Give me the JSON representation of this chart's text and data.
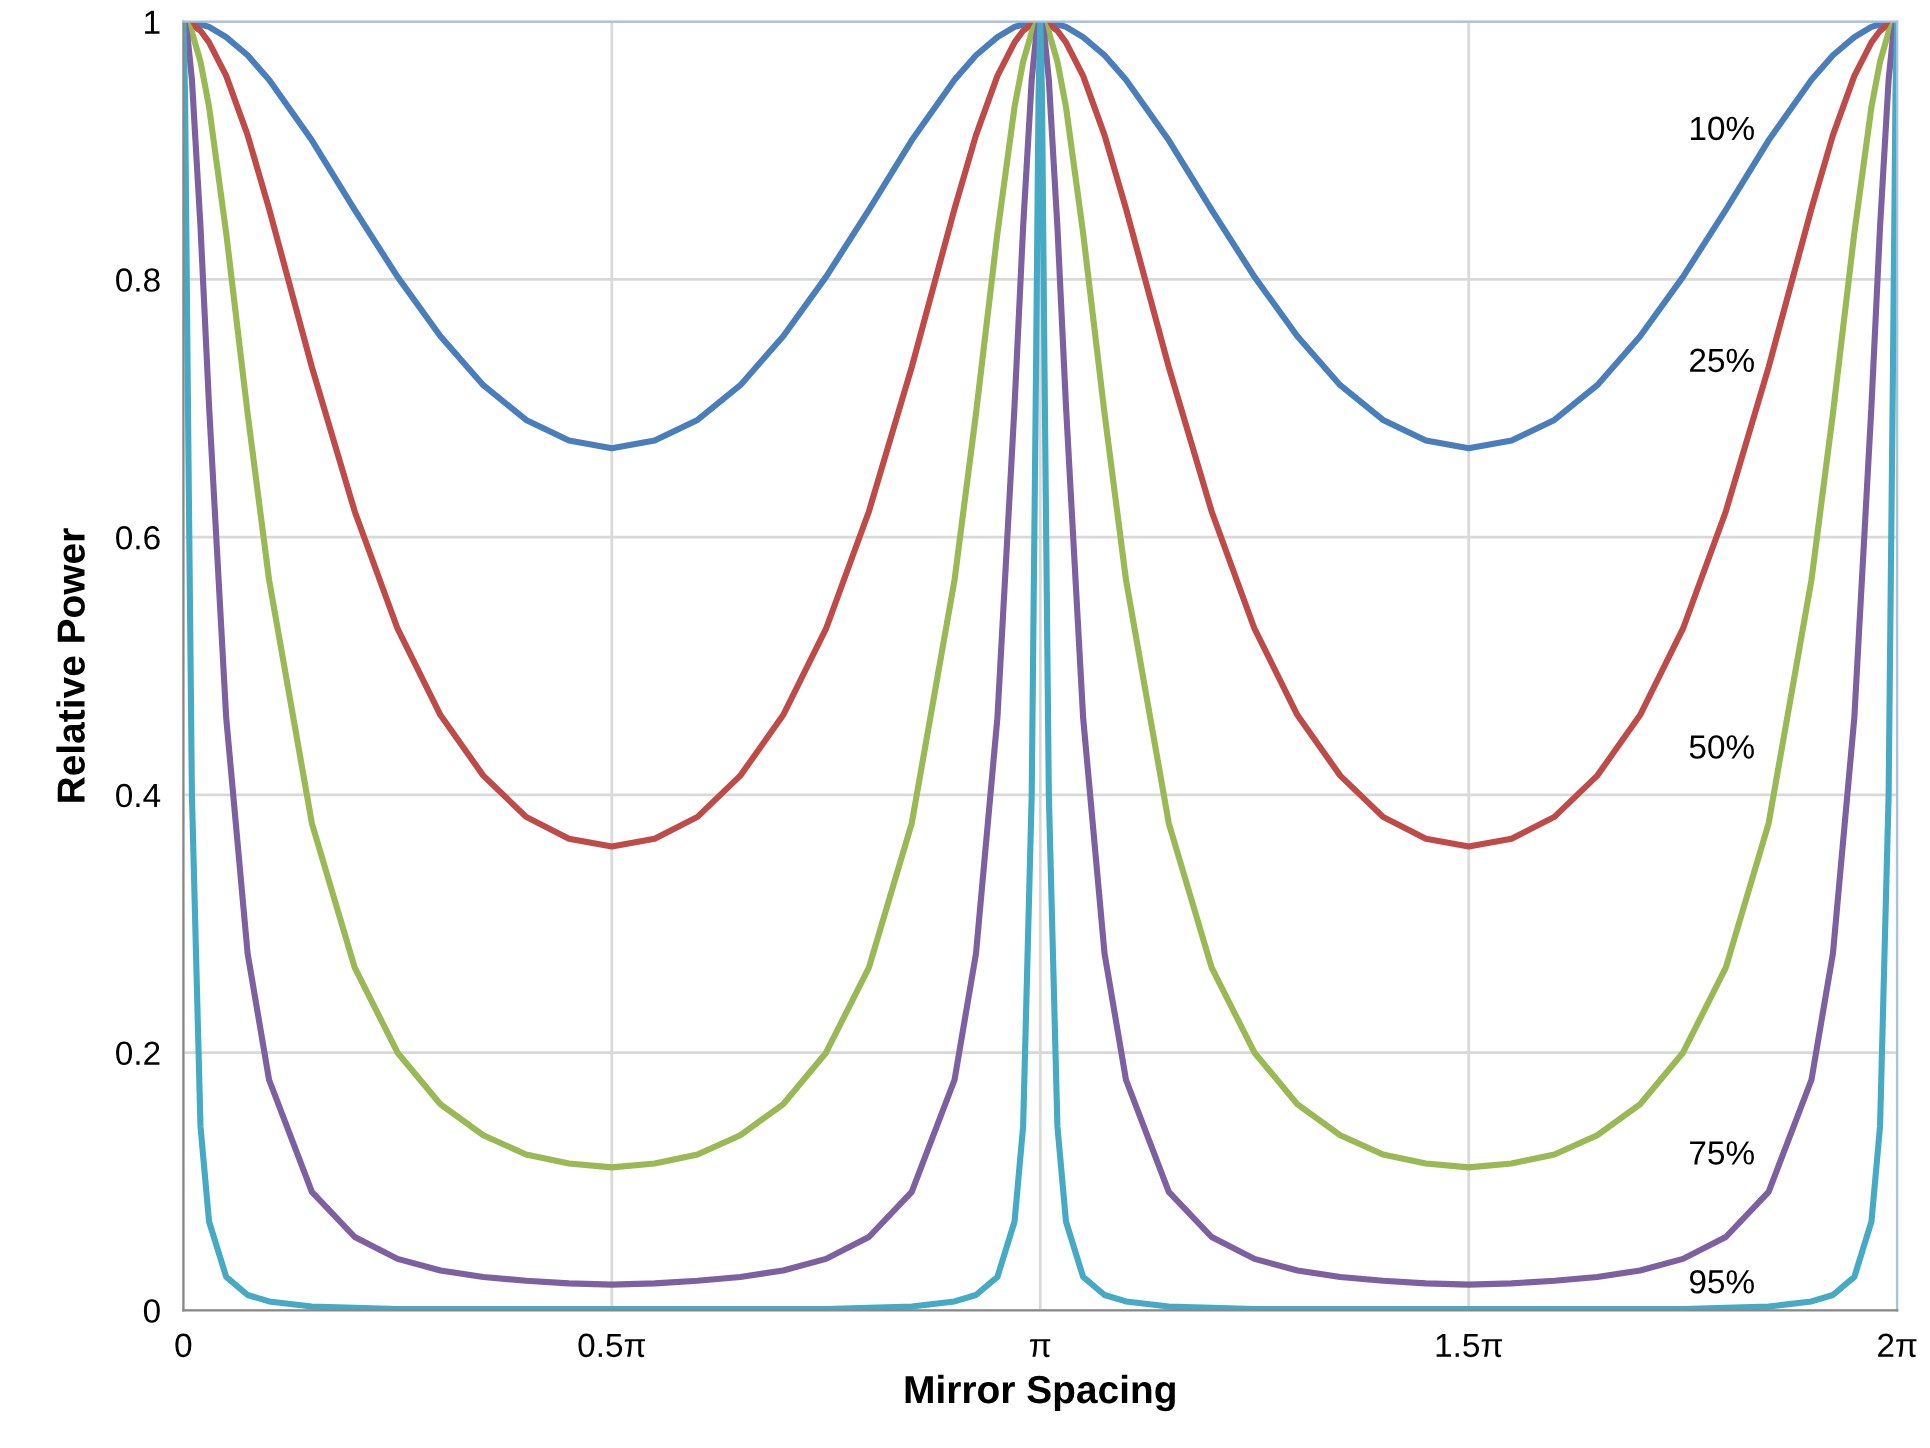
{
  "chart_data": {
    "type": "line",
    "xlabel": "Mirror Spacing",
    "ylabel": "Relative Power",
    "x": [
      0,
      0.0063,
      0.0157,
      0.0314,
      0.0628,
      0.0942,
      0.1571,
      0.2356,
      0.3142,
      0.4712,
      0.6283,
      0.7854,
      0.9425,
      1.0996,
      1.2566,
      1.4137,
      1.5708,
      1.7279,
      1.885,
      2.042,
      2.1991,
      2.3562,
      2.5133,
      2.6704,
      2.8274,
      2.906,
      2.9845,
      3.0473,
      3.0788,
      3.1102,
      3.1259,
      3.1353,
      3.1416,
      3.1479,
      3.1573,
      3.173,
      3.2044,
      3.2358,
      3.2987,
      3.3772,
      3.4558,
      3.6128,
      3.7699,
      3.927,
      4.0841,
      4.2412,
      4.3982,
      4.5553,
      4.7124,
      4.8695,
      5.0265,
      5.1836,
      5.3407,
      5.4978,
      5.6549,
      5.8119,
      5.969,
      6.0476,
      6.1261,
      6.1889,
      6.2204,
      6.2518,
      6.2675,
      6.2769,
      6.2832
    ],
    "series": [
      {
        "name": "10%",
        "color": "#4a7ebb",
        "values": [
          1,
          1,
          1,
          1,
          0.998,
          0.996,
          0.988,
          0.974,
          0.955,
          0.908,
          0.854,
          0.802,
          0.756,
          0.718,
          0.691,
          0.675,
          0.669,
          0.675,
          0.691,
          0.718,
          0.756,
          0.802,
          0.854,
          0.908,
          0.955,
          0.974,
          0.988,
          0.996,
          0.998,
          1,
          1,
          1,
          1,
          1,
          1,
          1,
          0.998,
          0.996,
          0.988,
          0.974,
          0.955,
          0.908,
          0.854,
          0.802,
          0.756,
          0.718,
          0.691,
          0.675,
          0.669,
          0.675,
          0.691,
          0.718,
          0.756,
          0.802,
          0.854,
          0.908,
          0.955,
          0.974,
          0.988,
          0.996,
          0.998,
          1,
          1,
          1,
          1
        ]
      },
      {
        "name": "25%",
        "color": "#be4b48",
        "values": [
          1,
          1,
          1,
          0.998,
          0.993,
          0.984,
          0.958,
          0.912,
          0.855,
          0.732,
          0.62,
          0.529,
          0.462,
          0.415,
          0.383,
          0.366,
          0.36,
          0.366,
          0.383,
          0.415,
          0.462,
          0.529,
          0.62,
          0.732,
          0.855,
          0.912,
          0.958,
          0.984,
          0.993,
          0.998,
          1,
          1,
          1,
          1,
          1,
          0.998,
          0.993,
          0.984,
          0.958,
          0.912,
          0.855,
          0.732,
          0.62,
          0.529,
          0.462,
          0.415,
          0.383,
          0.366,
          0.36,
          0.366,
          0.383,
          0.415,
          0.462,
          0.529,
          0.62,
          0.732,
          0.855,
          0.912,
          0.958,
          0.984,
          0.993,
          0.998,
          1,
          1,
          1
        ]
      },
      {
        "name": "50%",
        "color": "#98b954",
        "values": [
          1,
          1,
          0.998,
          0.992,
          0.969,
          0.934,
          0.836,
          0.696,
          0.567,
          0.378,
          0.266,
          0.2,
          0.16,
          0.136,
          0.121,
          0.114,
          0.111,
          0.114,
          0.121,
          0.136,
          0.16,
          0.2,
          0.266,
          0.378,
          0.567,
          0.696,
          0.836,
          0.934,
          0.969,
          0.992,
          0.998,
          1,
          1,
          1,
          0.998,
          0.992,
          0.969,
          0.934,
          0.836,
          0.696,
          0.567,
          0.378,
          0.266,
          0.2,
          0.16,
          0.136,
          0.121,
          0.114,
          0.111,
          0.114,
          0.121,
          0.136,
          0.16,
          0.2,
          0.266,
          0.378,
          0.567,
          0.696,
          0.836,
          0.934,
          0.969,
          0.992,
          0.998,
          1,
          1
        ]
      },
      {
        "name": "75%",
        "color": "#7d60a0",
        "values": [
          1,
          0.998,
          0.988,
          0.955,
          0.841,
          0.702,
          0.46,
          0.277,
          0.179,
          0.092,
          0.057,
          0.04,
          0.031,
          0.026,
          0.023,
          0.021,
          0.02,
          0.021,
          0.023,
          0.026,
          0.031,
          0.04,
          0.057,
          0.092,
          0.179,
          0.277,
          0.46,
          0.702,
          0.841,
          0.955,
          0.988,
          0.998,
          1,
          0.998,
          0.988,
          0.955,
          0.841,
          0.702,
          0.46,
          0.277,
          0.179,
          0.092,
          0.057,
          0.04,
          0.031,
          0.026,
          0.023,
          0.021,
          0.02,
          0.021,
          0.023,
          0.026,
          0.031,
          0.04,
          0.057,
          0.092,
          0.179,
          0.277,
          0.46,
          0.702,
          0.841,
          0.955,
          0.988,
          0.998,
          1
        ]
      },
      {
        "name": "95%",
        "color": "#46aac5",
        "values": [
          1,
          0.943,
          0.727,
          0.4,
          0.143,
          0.069,
          0.026,
          0.012,
          0.007,
          0.003,
          0.002,
          0.001,
          0.001,
          0.001,
          0.001,
          0.001,
          0.001,
          0.001,
          0.001,
          0.001,
          0.001,
          0.001,
          0.002,
          0.003,
          0.007,
          0.012,
          0.026,
          0.069,
          0.143,
          0.4,
          0.727,
          0.943,
          1,
          0.943,
          0.727,
          0.4,
          0.143,
          0.069,
          0.026,
          0.012,
          0.007,
          0.003,
          0.002,
          0.001,
          0.001,
          0.001,
          0.001,
          0.001,
          0.001,
          0.001,
          0.001,
          0.001,
          0.001,
          0.001,
          0.002,
          0.003,
          0.007,
          0.012,
          0.026,
          0.069,
          0.143,
          0.4,
          0.727,
          0.943,
          1
        ]
      }
    ],
    "xlim": [
      0,
      6.2832
    ],
    "xticks": [
      0,
      {
        "value": 1.5708,
        "label": "0.5π"
      },
      {
        "value": 3.1416,
        "label": "π"
      },
      {
        "value": 4.7124,
        "label": "1.5π"
      },
      {
        "value": 6.2832,
        "label": "2π"
      }
    ],
    "ylim": [
      0,
      1
    ],
    "yticks": [
      0,
      0.2,
      0.4,
      0.6,
      0.8,
      1
    ],
    "grid": true,
    "legend": false,
    "marker": "none",
    "line_style": "solid"
  }
}
